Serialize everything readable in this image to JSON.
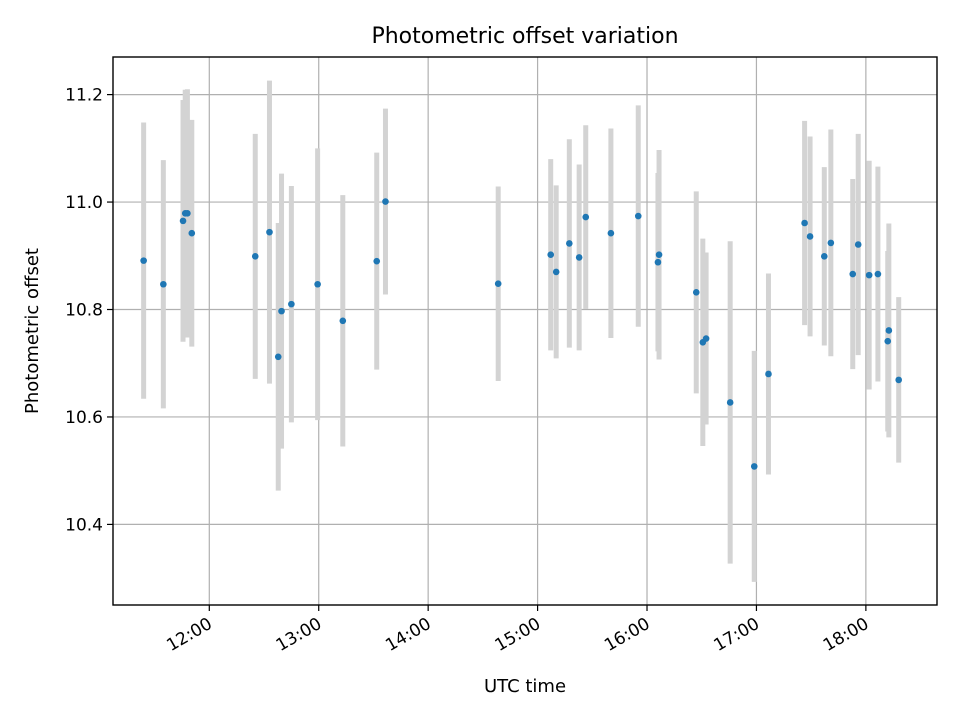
{
  "chart_data": {
    "type": "scatter",
    "title": "Photometric offset variation",
    "xlabel": "UTC time",
    "ylabel": "Photometric offset",
    "x_unit": "hours UTC",
    "xlim": [
      11.12,
      18.65
    ],
    "ylim": [
      10.25,
      11.27
    ],
    "x_ticks": [
      {
        "value": 12,
        "label": "12:00"
      },
      {
        "value": 13,
        "label": "13:00"
      },
      {
        "value": 14,
        "label": "14:00"
      },
      {
        "value": 15,
        "label": "15:00"
      },
      {
        "value": 16,
        "label": "16:00"
      },
      {
        "value": 17,
        "label": "17:00"
      },
      {
        "value": 18,
        "label": "18:00"
      }
    ],
    "y_ticks": [
      {
        "value": 10.4,
        "label": "10.4"
      },
      {
        "value": 10.6,
        "label": "10.6"
      },
      {
        "value": 10.8,
        "label": "10.8"
      },
      {
        "value": 11.0,
        "label": "11.0"
      },
      {
        "value": 11.2,
        "label": "11.2"
      }
    ],
    "grid": true,
    "legend": "none",
    "colors": {
      "marker": "#1f77b4",
      "errorbar": "#d3d3d3",
      "grid": "#b0b0b0"
    },
    "series": [
      {
        "x": [
          11.4,
          11.58,
          11.76,
          11.78,
          11.8,
          11.84,
          12.42,
          12.55,
          12.63,
          12.66,
          12.75,
          12.99,
          13.22,
          13.53,
          13.61,
          14.64,
          15.12,
          15.17,
          15.29,
          15.38,
          15.44,
          15.67,
          15.92,
          16.1,
          16.11,
          16.45,
          16.51,
          16.54,
          16.76,
          16.98,
          17.11,
          17.44,
          17.49,
          17.62,
          17.68,
          17.88,
          17.93,
          18.03,
          18.11,
          18.2,
          18.21,
          18.3
        ],
        "y": [
          10.891,
          10.847,
          10.965,
          10.979,
          10.979,
          10.942,
          10.899,
          10.944,
          10.712,
          10.797,
          10.81,
          10.847,
          10.779,
          10.89,
          11.001,
          10.848,
          10.902,
          10.87,
          10.923,
          10.897,
          10.972,
          10.942,
          10.974,
          10.888,
          10.902,
          10.832,
          10.739,
          10.746,
          10.627,
          10.508,
          10.68,
          10.961,
          10.936,
          10.899,
          10.924,
          10.866,
          10.921,
          10.864,
          10.866,
          10.741,
          10.761,
          10.669
        ],
        "err": [
          0.257,
          0.231,
          0.225,
          0.23,
          0.231,
          0.211,
          0.228,
          0.282,
          0.249,
          0.256,
          0.22,
          0.253,
          0.234,
          0.202,
          0.173,
          0.181,
          0.178,
          0.161,
          0.194,
          0.173,
          0.171,
          0.195,
          0.206,
          0.166,
          0.195,
          0.188,
          0.193,
          0.16,
          0.3,
          0.215,
          0.187,
          0.19,
          0.186,
          0.166,
          0.211,
          0.177,
          0.206,
          0.213,
          0.2,
          0.168,
          0.199,
          0.154
        ]
      }
    ]
  }
}
